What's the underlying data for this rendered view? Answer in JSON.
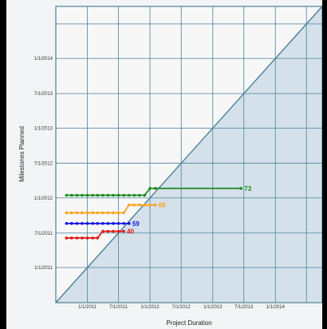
{
  "chart_data": {
    "type": "line",
    "subtype": "milestone-trend-analysis",
    "xlabel": "Project Duration",
    "ylabel": "Milestones Planned",
    "x_ticks": [
      "1/1/2011",
      "7/1/2011",
      "1/1/2012",
      "7/1/2012",
      "1/1/2013",
      "7/1/2013",
      "1/1/2014"
    ],
    "y_ticks": [
      "1/1/2011",
      "7/1/2011",
      "1/1/2012",
      "7/1/2012",
      "1/1/2013",
      "7/1/2013",
      "1/1/2014"
    ],
    "diagonal_reference": true,
    "grid": true,
    "series": [
      {
        "label": "73",
        "color": "#1e8a1e",
        "x": [
          "2010-09-01",
          "2010-10-01",
          "2010-11-01",
          "2010-12-01",
          "2011-01-01",
          "2011-02-01",
          "2011-03-01",
          "2011-04-01",
          "2011-05-01",
          "2011-06-01",
          "2011-07-01",
          "2011-08-01",
          "2011-09-01",
          "2011-10-01",
          "2011-11-01",
          "2011-12-01",
          "2012-01-01",
          "2012-02-01",
          "2013-06-15"
        ],
        "y": [
          "2012-01-15",
          "2012-01-15",
          "2012-01-15",
          "2012-01-15",
          "2012-01-15",
          "2012-01-15",
          "2012-01-15",
          "2012-01-15",
          "2012-01-15",
          "2012-01-15",
          "2012-01-15",
          "2012-01-15",
          "2012-01-15",
          "2012-01-15",
          "2012-01-15",
          "2012-01-15",
          "2012-02-20",
          "2012-02-20",
          "2012-02-20"
        ]
      },
      {
        "label": "68",
        "color": "#f5a623",
        "x": [
          "2010-09-01",
          "2010-10-01",
          "2010-11-01",
          "2010-12-01",
          "2011-01-01",
          "2011-02-01",
          "2011-03-01",
          "2011-04-01",
          "2011-05-01",
          "2011-06-01",
          "2011-07-01",
          "2011-08-01",
          "2011-09-01",
          "2011-10-01",
          "2011-11-01",
          "2011-12-01",
          "2012-01-01",
          "2012-02-01"
        ],
        "y": [
          "2011-10-15",
          "2011-10-15",
          "2011-10-15",
          "2011-10-15",
          "2011-10-15",
          "2011-10-15",
          "2011-10-15",
          "2011-10-15",
          "2011-10-15",
          "2011-10-15",
          "2011-10-15",
          "2011-10-15",
          "2011-11-25",
          "2011-11-25",
          "2011-11-25",
          "2011-11-25",
          "2011-11-25",
          "2011-11-25"
        ]
      },
      {
        "label": "59",
        "color": "#1515e6",
        "x": [
          "2010-09-01",
          "2010-10-01",
          "2010-11-01",
          "2010-12-01",
          "2011-01-01",
          "2011-02-01",
          "2011-03-01",
          "2011-04-01",
          "2011-05-01",
          "2011-06-01",
          "2011-07-01",
          "2011-08-01",
          "2011-09-01"
        ],
        "y": [
          "2011-08-20",
          "2011-08-20",
          "2011-08-20",
          "2011-08-20",
          "2011-08-20",
          "2011-08-20",
          "2011-08-20",
          "2011-08-20",
          "2011-08-20",
          "2011-08-20",
          "2011-08-20",
          "2011-08-20",
          "2011-08-20"
        ]
      },
      {
        "label": "40",
        "color": "#e01818",
        "x": [
          "2010-09-01",
          "2010-10-01",
          "2010-11-01",
          "2010-12-01",
          "2011-01-01",
          "2011-02-01",
          "2011-03-01",
          "2011-04-01",
          "2011-05-01",
          "2011-06-01",
          "2011-07-01",
          "2011-08-01"
        ],
        "y": [
          "2011-06-05",
          "2011-06-05",
          "2011-06-05",
          "2011-06-05",
          "2011-06-05",
          "2011-06-05",
          "2011-06-05",
          "2011-07-10",
          "2011-07-10",
          "2011-07-10",
          "2011-07-10",
          "2011-07-10"
        ]
      }
    ]
  }
}
